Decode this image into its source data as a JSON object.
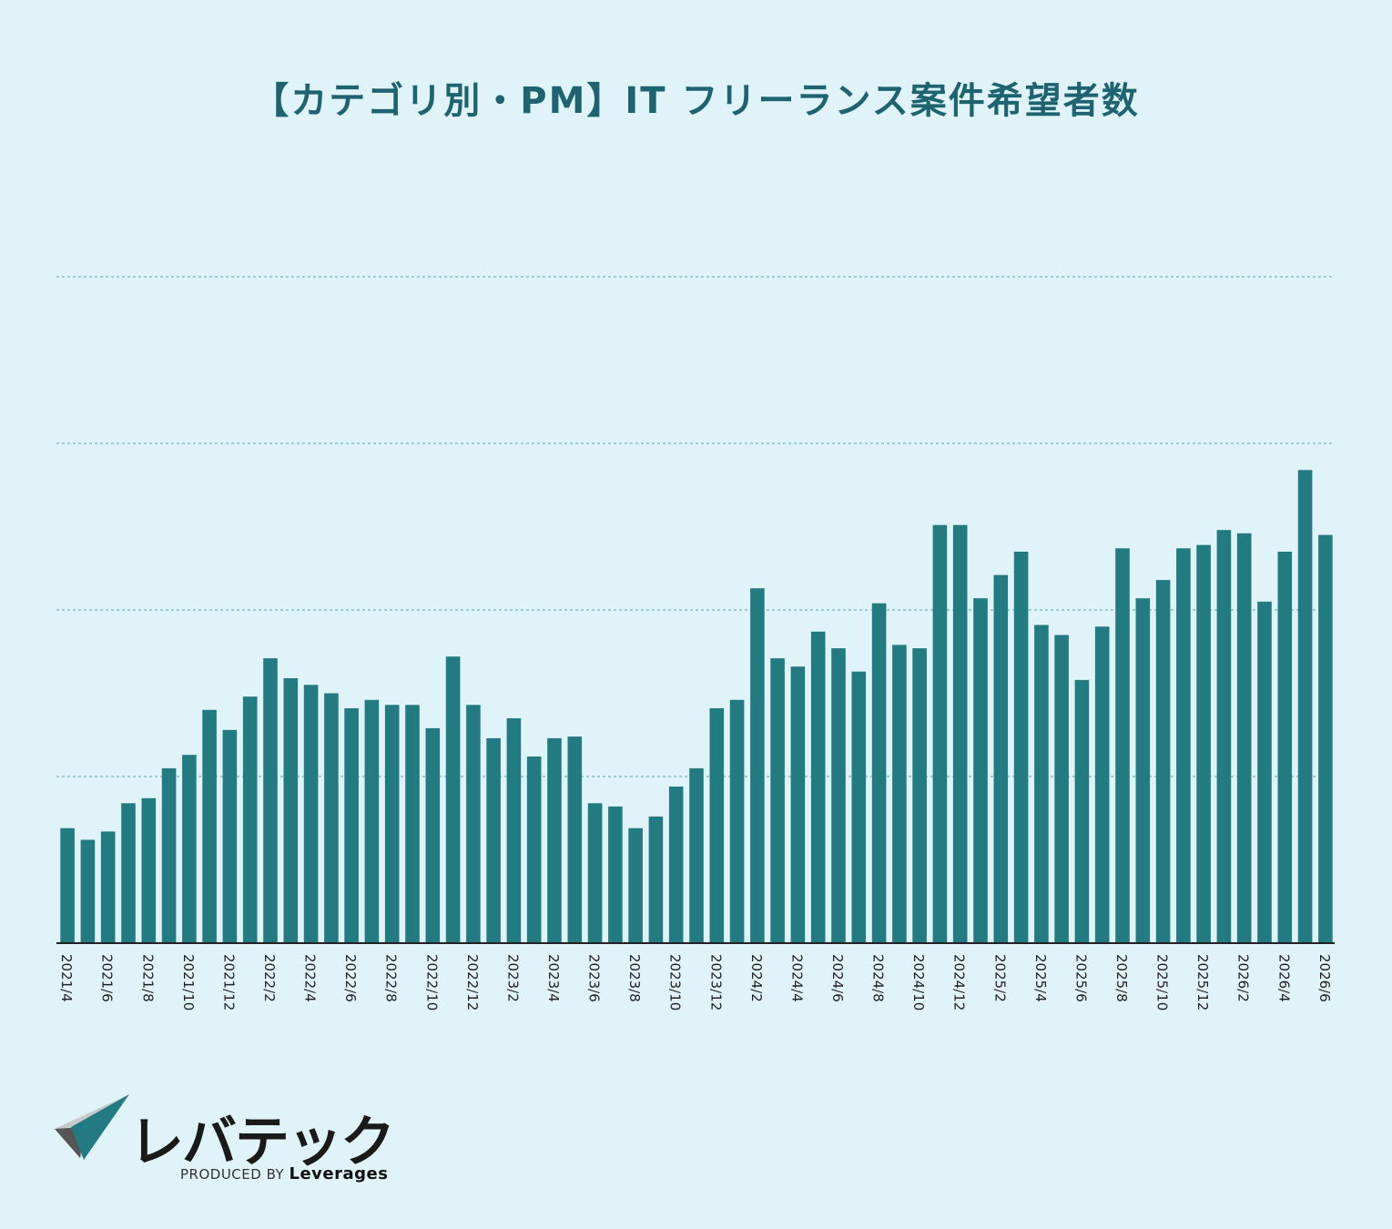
{
  "title": "【カテゴリ別・PM】IT フリーランス案件希望者数",
  "brand": {
    "name": "レバテック",
    "produced_by": "PRODUCED BY",
    "company": "Leverages"
  },
  "colors": {
    "background": "#dff3f8",
    "bar": "#237b82",
    "title": "#1d6470",
    "grid": "#8cbcc4",
    "axis": "#222222"
  },
  "chart_data": {
    "type": "bar",
    "title": "【カテゴリ別・PM】IT フリーランス案件希望者数",
    "xlabel": "",
    "ylabel": "",
    "grid": "horizontal-dashed",
    "y_ticks_labeled": false,
    "ylim": [
      0,
      4
    ],
    "gridlines": [
      1,
      2,
      3
    ],
    "categories": [
      "2021/4",
      "2021/5",
      "2021/6",
      "2021/7",
      "2021/8",
      "2021/9",
      "2021/10",
      "2021/11",
      "2021/12",
      "2022/1",
      "2022/2",
      "2022/3",
      "2022/4",
      "2022/5",
      "2022/6",
      "2022/7",
      "2022/8",
      "2022/9",
      "2022/10",
      "2022/11",
      "2022/12",
      "2023/1",
      "2023/2",
      "2023/3",
      "2023/4",
      "2023/5",
      "2023/6",
      "2023/7",
      "2023/8",
      "2023/9",
      "2023/10",
      "2023/11",
      "2023/12",
      "2024/1",
      "2024/2",
      "2024/3",
      "2024/4",
      "2024/5",
      "2024/6",
      "2024/7",
      "2024/8",
      "2024/9",
      "2024/10",
      "2024/11",
      "2024/12",
      "2025/1",
      "2025/2",
      "2025/3",
      "2025/4",
      "2025/5",
      "2025/6",
      "2025/7",
      "2025/8",
      "2025/9",
      "2025/10",
      "2025/11",
      "2025/12",
      "2026/1",
      "2026/2",
      "2026/3",
      "2026/4",
      "2026/5",
      "2026/6"
    ],
    "tick_labels": [
      "2021/4",
      "2021/6",
      "2021/8",
      "2021/10",
      "2021/12",
      "2022/2",
      "2022/4",
      "2022/6",
      "2022/8",
      "2022/10",
      "2022/12",
      "2023/2",
      "2023/4",
      "2023/6",
      "2023/8",
      "2023/10",
      "2023/12",
      "2024/2",
      "2024/4",
      "2024/6",
      "2024/8",
      "2024/10",
      "2024/12",
      "2025/2",
      "2025/4",
      "2025/6",
      "2025/8",
      "2025/10",
      "2025/12",
      "2026/2",
      "2026/4",
      "2026/6"
    ],
    "values": [
      0.69,
      0.62,
      0.67,
      0.84,
      0.87,
      1.05,
      1.13,
      1.4,
      1.28,
      1.48,
      1.71,
      1.59,
      1.55,
      1.5,
      1.41,
      1.46,
      1.43,
      1.43,
      1.29,
      1.72,
      1.43,
      1.23,
      1.35,
      1.12,
      1.23,
      1.24,
      0.84,
      0.82,
      0.69,
      0.76,
      0.94,
      1.05,
      1.41,
      1.46,
      2.13,
      1.71,
      1.66,
      1.87,
      1.77,
      1.63,
      2.04,
      1.79,
      1.77,
      2.51,
      2.51,
      2.07,
      2.21,
      2.35,
      1.91,
      1.85,
      1.58,
      1.9,
      2.37,
      2.07,
      2.18,
      2.37,
      2.39,
      2.48,
      2.46,
      2.05,
      2.35,
      2.84,
      2.45
    ]
  }
}
